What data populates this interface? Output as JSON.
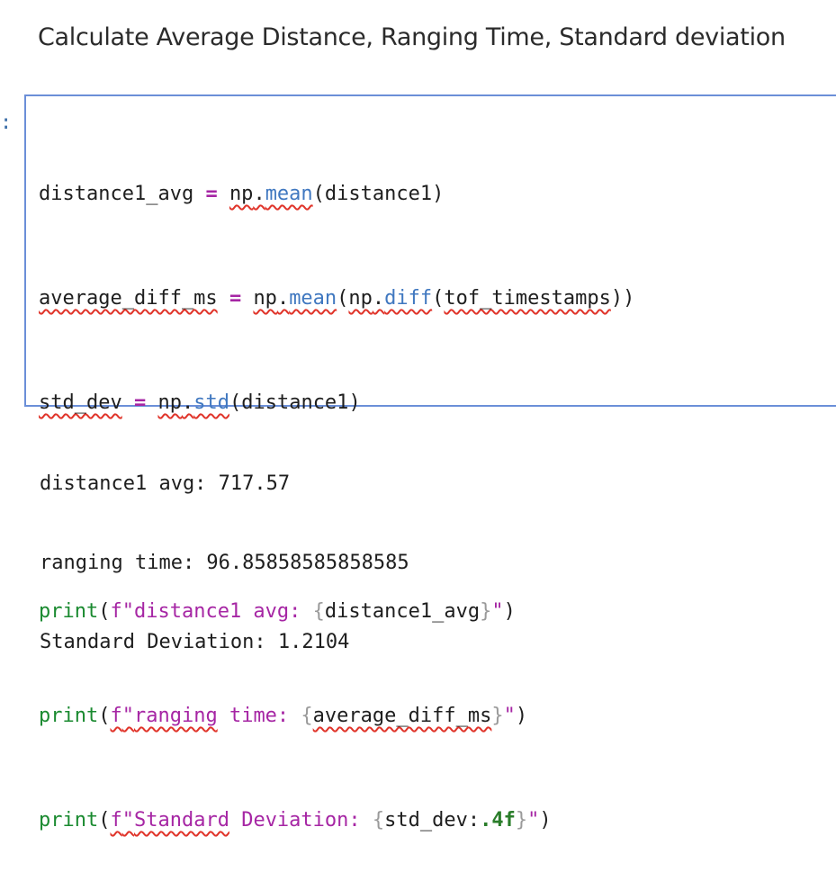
{
  "markdown": {
    "heading": "Calculate Average Distance, Ranging Time, Standard deviation"
  },
  "cell": {
    "prompt": ":",
    "tokens": {
      "distance1_avg": "distance1_avg",
      "average_diff_ms": "average_diff_ms",
      "std_dev": "std_dev",
      "assign": "=",
      "np": "np",
      "dot": ".",
      "mean": "mean",
      "diff": "diff",
      "std": "std",
      "open": "(",
      "close": ")",
      "distance1": "distance1",
      "tof_timestamps": "tof_timestamps",
      "print": "print",
      "f": "f",
      "quote": "\"",
      "lbrace": "{",
      "rbrace": "}",
      "str1": "distance1 avg: ",
      "str2_a": "ranging",
      "str2_b": " time: ",
      "str3_a": "Standard",
      "str3_b": " Deviation: ",
      "std_dev_fmt_prefix": "std_dev:",
      "std_dev_fmt_spec": ".4f"
    }
  },
  "output": {
    "lines": [
      "distance1 avg: 717.57",
      "ranging time: 96.85858585858585",
      "Standard Deviation: 1.2104"
    ]
  }
}
